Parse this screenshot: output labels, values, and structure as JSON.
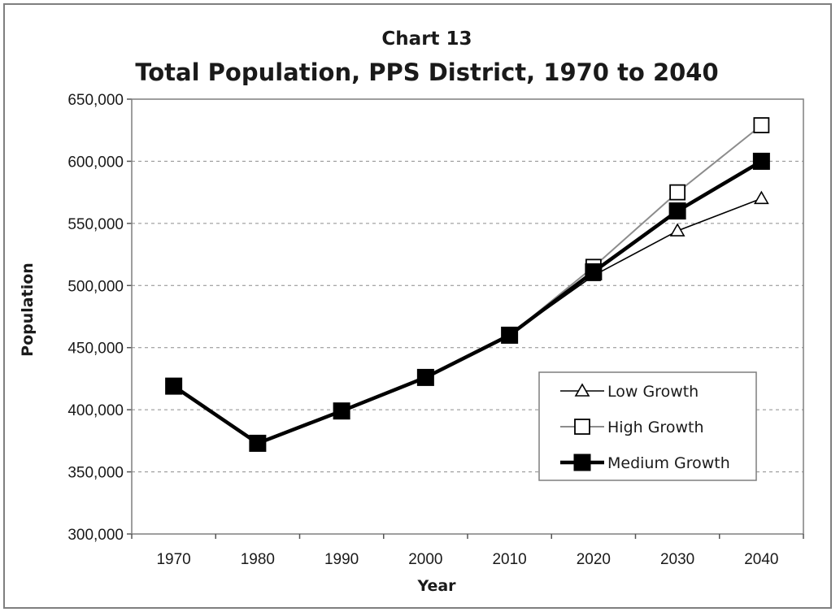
{
  "chart_data": {
    "type": "line",
    "title": "Chart 13",
    "subtitle": "Total Population, PPS District, 1970 to 2040",
    "xlabel": "Year",
    "ylabel": "Population",
    "categories": [
      "1970",
      "1980",
      "1990",
      "2000",
      "2010",
      "2020",
      "2030",
      "2040"
    ],
    "ylim": [
      300000,
      650000
    ],
    "yticks": [
      300000,
      350000,
      400000,
      450000,
      500000,
      550000,
      600000,
      650000
    ],
    "ytick_labels": [
      "300,000",
      "350,000",
      "400,000",
      "450,000",
      "500,000",
      "550,000",
      "600,000",
      "650,000"
    ],
    "grid": "horizontal dashed",
    "legend_position": "bottom-right",
    "series": [
      {
        "name": "Low Growth",
        "marker": "open-triangle",
        "color": "#000000",
        "values": [
          null,
          null,
          null,
          null,
          460000,
          508000,
          544000,
          570000
        ]
      },
      {
        "name": "High Growth",
        "marker": "open-square",
        "color": "#8c8c8c",
        "values": [
          null,
          null,
          null,
          null,
          460000,
          515000,
          575000,
          629000
        ]
      },
      {
        "name": "Medium Growth",
        "marker": "filled-square",
        "color": "#000000",
        "values": [
          419000,
          373000,
          399000,
          426000,
          460000,
          511000,
          560000,
          600000
        ]
      }
    ]
  }
}
